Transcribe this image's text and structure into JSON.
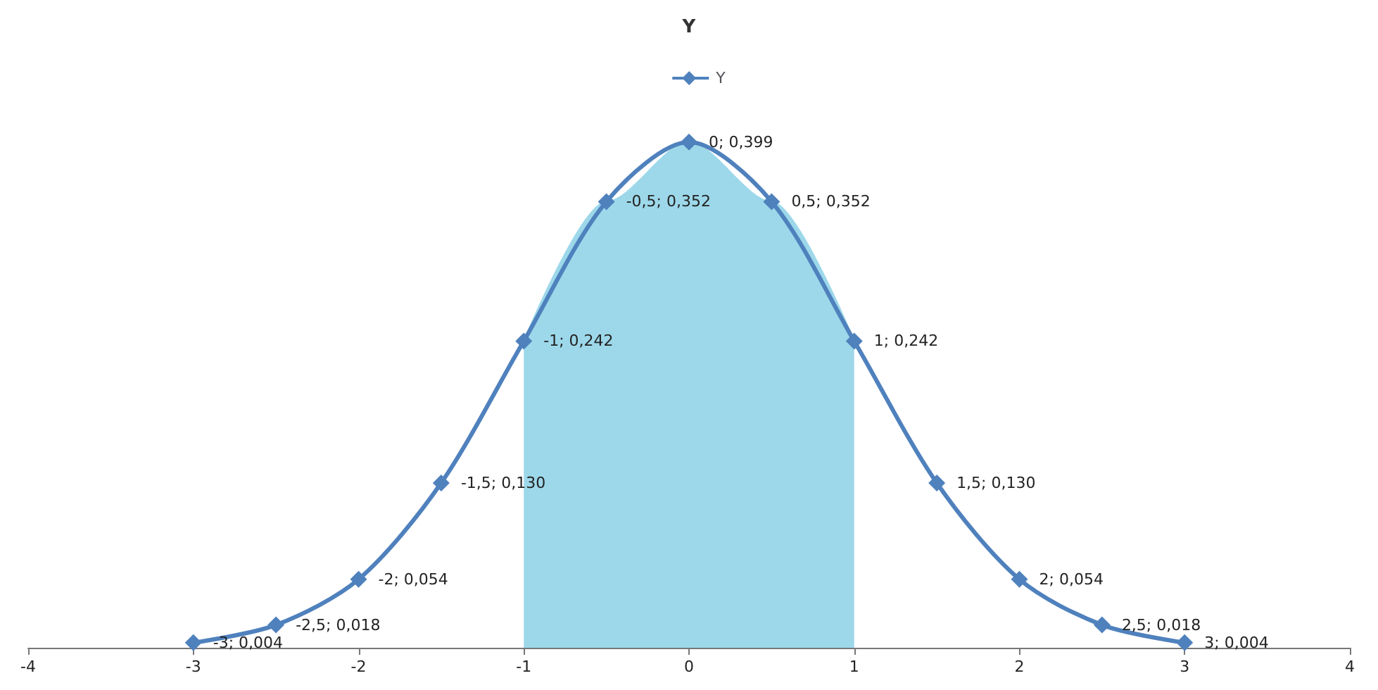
{
  "chart_data": {
    "type": "line",
    "title": "Y",
    "xlim": [
      -4,
      4
    ],
    "xticks": [
      -4,
      -3,
      -2,
      -1,
      0,
      1,
      2,
      3,
      4
    ],
    "tick_labels": "x",
    "grid": false,
    "legend": "top",
    "line_style": "solid",
    "series": [
      {
        "type": "area",
        "color": "#9dd8ea",
        "x": [
          -1,
          -0.5,
          0,
          0.5,
          1
        ],
        "values": [
          0.242,
          0.352,
          0.399,
          0.352,
          0.242
        ]
      },
      {
        "name": "Y",
        "marker": "diamond",
        "color": "#4f81bd",
        "x": [
          -3,
          -2.5,
          -2,
          -1.5,
          -1,
          -0.5,
          0,
          0.5,
          1,
          1.5,
          2,
          2.5,
          3
        ],
        "values": [
          0.004,
          0.018,
          0.054,
          0.13,
          0.242,
          0.352,
          0.399,
          0.352,
          0.242,
          0.13,
          0.054,
          0.018,
          0.004
        ],
        "value_labels": [
          "-3; 0,004",
          "-2,5; 0,018",
          "-2; 0,054",
          "-1,5; 0,130",
          "-1; 0,242",
          "-0,5; 0,352",
          "0; 0,399",
          "0,5; 0,352",
          "1; 0,242",
          "1,5; 0,130",
          "2; 0,054",
          "2,5; 0,018",
          "3; 0,004"
        ]
      }
    ]
  }
}
